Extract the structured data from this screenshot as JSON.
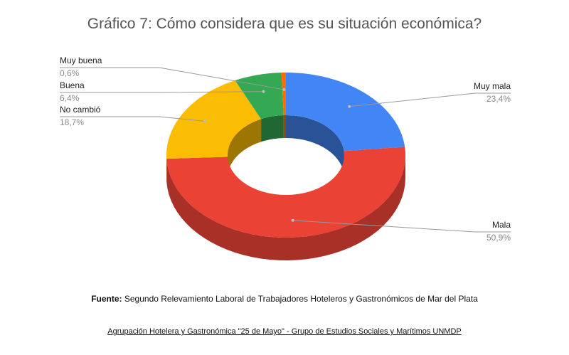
{
  "chart_data": {
    "type": "pie",
    "title": "Gráfico 7: Cómo considera que es su situación económica?",
    "slices": [
      {
        "label": "Muy mala",
        "value": 23.4,
        "value_label": "23,4%",
        "color": "#4285f4"
      },
      {
        "label": "Mala",
        "value": 50.9,
        "value_label": "50,9%",
        "color": "#ea4335"
      },
      {
        "label": "No cambió",
        "value": 18.7,
        "value_label": "18,7%",
        "color": "#fbbc04"
      },
      {
        "label": "Buena",
        "value": 6.4,
        "value_label": "6,4%",
        "color": "#34a853"
      },
      {
        "label": "Muy buena",
        "value": 0.6,
        "value_label": "0,6%",
        "color": "#ff6d01"
      }
    ],
    "style": "3d-donut"
  },
  "footer": {
    "source_prefix": "Fuente:",
    "source_text": " Segundo Relevamiento Laboral de Trabajadores Hoteleros y Gastronómicos de Mar del Plata",
    "credit": "Agrupación Hotelera y Gastronómica \"25 de Mayo\" - Grupo de Estudios Sociales y Marítimos UNMDP"
  }
}
